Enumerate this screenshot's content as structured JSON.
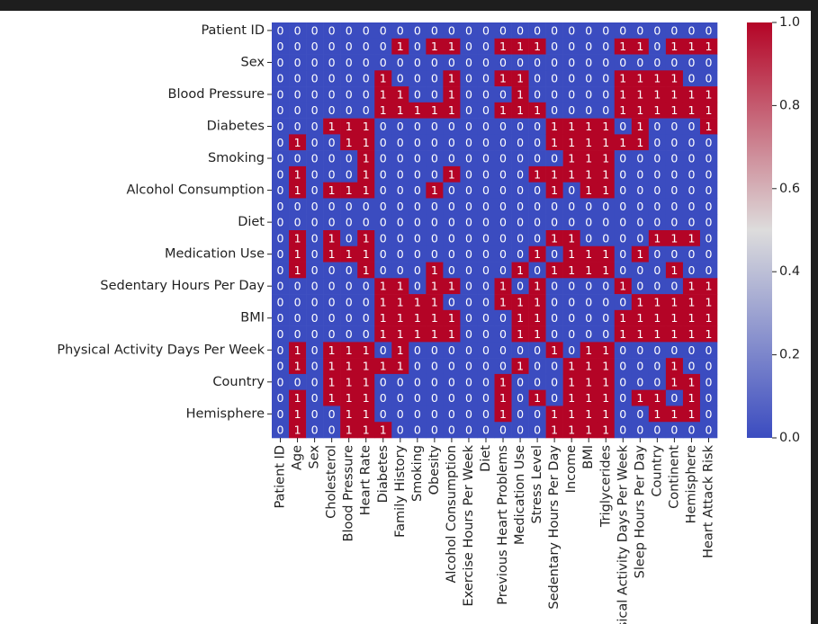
{
  "chart_data": {
    "type": "heatmap",
    "x": [
      "Patient ID",
      "Age",
      "Sex",
      "Cholesterol",
      "Blood Pressure",
      "Heart Rate",
      "Diabetes",
      "Family History",
      "Smoking",
      "Obesity",
      "Alcohol Consumption",
      "Exercise Hours Per Week",
      "Diet",
      "Previous Heart Problems",
      "Medication Use",
      "Stress Level",
      "Sedentary Hours Per Day",
      "Income",
      "BMI",
      "Triglycerides",
      "Physical Activity Days Per Week",
      "Sleep Hours Per Day",
      "Country",
      "Continent",
      "Hemisphere",
      "Heart Attack Risk"
    ],
    "y": [
      "Patient ID",
      null,
      "Sex",
      null,
      "Blood Pressure",
      null,
      "Diabetes",
      null,
      "Smoking",
      null,
      "Alcohol Consumption",
      null,
      "Diet",
      null,
      "Medication Use",
      null,
      "Sedentary Hours Per Day",
      null,
      "BMI",
      null,
      "Physical Activity Days Per Week",
      null,
      "Country",
      null,
      "Hemisphere",
      null
    ],
    "values": [
      [
        0,
        0,
        0,
        0,
        0,
        0,
        0,
        0,
        0,
        0,
        0,
        0,
        0,
        0,
        0,
        0,
        0,
        0,
        0,
        0,
        0,
        0,
        0,
        0,
        0,
        0
      ],
      [
        0,
        0,
        0,
        0,
        0,
        0,
        0,
        1,
        0,
        1,
        1,
        0,
        0,
        1,
        1,
        1,
        0,
        0,
        0,
        0,
        1,
        1,
        0,
        1,
        1,
        1
      ],
      [
        0,
        0,
        0,
        0,
        0,
        0,
        0,
        0,
        0,
        0,
        0,
        0,
        0,
        0,
        0,
        0,
        0,
        0,
        0,
        0,
        0,
        0,
        0,
        0,
        0,
        0
      ],
      [
        0,
        0,
        0,
        0,
        0,
        0,
        1,
        0,
        0,
        0,
        1,
        0,
        0,
        1,
        1,
        0,
        0,
        0,
        0,
        0,
        1,
        1,
        1,
        1,
        0,
        0
      ],
      [
        0,
        0,
        0,
        0,
        0,
        0,
        1,
        1,
        0,
        0,
        1,
        0,
        0,
        0,
        1,
        0,
        0,
        0,
        0,
        0,
        1,
        1,
        1,
        1,
        1,
        1
      ],
      [
        0,
        0,
        0,
        0,
        0,
        0,
        1,
        1,
        1,
        1,
        1,
        0,
        0,
        1,
        1,
        1,
        0,
        0,
        0,
        0,
        1,
        1,
        1,
        1,
        1,
        1
      ],
      [
        0,
        0,
        0,
        1,
        1,
        1,
        0,
        0,
        0,
        0,
        0,
        0,
        0,
        0,
        0,
        0,
        1,
        1,
        1,
        1,
        0,
        1,
        0,
        0,
        0,
        1
      ],
      [
        0,
        1,
        0,
        0,
        1,
        1,
        0,
        0,
        0,
        0,
        0,
        0,
        0,
        0,
        0,
        0,
        1,
        1,
        1,
        1,
        1,
        1,
        0,
        0,
        0,
        0
      ],
      [
        0,
        0,
        0,
        0,
        0,
        1,
        0,
        0,
        0,
        0,
        0,
        0,
        0,
        0,
        0,
        0,
        0,
        1,
        1,
        1,
        0,
        0,
        0,
        0,
        0,
        0
      ],
      [
        0,
        1,
        0,
        0,
        0,
        1,
        0,
        0,
        0,
        0,
        1,
        0,
        0,
        0,
        0,
        1,
        1,
        1,
        1,
        1,
        0,
        0,
        0,
        0,
        0,
        0
      ],
      [
        0,
        1,
        0,
        1,
        1,
        1,
        0,
        0,
        0,
        1,
        0,
        0,
        0,
        0,
        0,
        0,
        1,
        0,
        1,
        1,
        0,
        0,
        0,
        0,
        0,
        0
      ],
      [
        0,
        0,
        0,
        0,
        0,
        0,
        0,
        0,
        0,
        0,
        0,
        0,
        0,
        0,
        0,
        0,
        0,
        0,
        0,
        0,
        0,
        0,
        0,
        0,
        0,
        0
      ],
      [
        0,
        0,
        0,
        0,
        0,
        0,
        0,
        0,
        0,
        0,
        0,
        0,
        0,
        0,
        0,
        0,
        0,
        0,
        0,
        0,
        0,
        0,
        0,
        0,
        0,
        0
      ],
      [
        0,
        1,
        0,
        1,
        0,
        1,
        0,
        0,
        0,
        0,
        0,
        0,
        0,
        0,
        0,
        0,
        1,
        1,
        0,
        0,
        0,
        0,
        1,
        1,
        1,
        0
      ],
      [
        0,
        1,
        0,
        1,
        1,
        1,
        0,
        0,
        0,
        0,
        0,
        0,
        0,
        0,
        0,
        1,
        0,
        1,
        1,
        1,
        0,
        1,
        0,
        0,
        0,
        0
      ],
      [
        0,
        1,
        0,
        0,
        0,
        1,
        0,
        0,
        0,
        1,
        0,
        0,
        0,
        0,
        1,
        0,
        1,
        1,
        1,
        1,
        0,
        0,
        0,
        1,
        0,
        0
      ],
      [
        0,
        0,
        0,
        0,
        0,
        0,
        1,
        1,
        0,
        1,
        1,
        0,
        0,
        1,
        0,
        1,
        0,
        0,
        0,
        0,
        1,
        0,
        0,
        0,
        1,
        1
      ],
      [
        0,
        0,
        0,
        0,
        0,
        0,
        1,
        1,
        1,
        1,
        0,
        0,
        0,
        1,
        1,
        1,
        0,
        0,
        0,
        0,
        0,
        1,
        1,
        1,
        1,
        1
      ],
      [
        0,
        0,
        0,
        0,
        0,
        0,
        1,
        1,
        1,
        1,
        1,
        0,
        0,
        0,
        1,
        1,
        0,
        0,
        0,
        0,
        1,
        1,
        1,
        1,
        1,
        1
      ],
      [
        0,
        0,
        0,
        0,
        0,
        0,
        1,
        1,
        1,
        1,
        1,
        0,
        0,
        0,
        1,
        1,
        0,
        0,
        0,
        0,
        1,
        1,
        1,
        1,
        1,
        1
      ],
      [
        0,
        1,
        0,
        1,
        1,
        1,
        0,
        1,
        0,
        0,
        0,
        0,
        0,
        0,
        0,
        0,
        1,
        0,
        1,
        1,
        0,
        0,
        0,
        0,
        0,
        0
      ],
      [
        0,
        1,
        0,
        1,
        1,
        1,
        1,
        1,
        0,
        0,
        0,
        0,
        0,
        0,
        1,
        0,
        0,
        1,
        1,
        1,
        0,
        0,
        0,
        1,
        0,
        0
      ],
      [
        0,
        0,
        0,
        1,
        1,
        1,
        0,
        0,
        0,
        0,
        0,
        0,
        0,
        1,
        0,
        0,
        0,
        1,
        1,
        1,
        0,
        0,
        0,
        1,
        1,
        0
      ],
      [
        0,
        1,
        0,
        1,
        1,
        1,
        0,
        0,
        0,
        0,
        0,
        0,
        0,
        1,
        0,
        1,
        0,
        1,
        1,
        1,
        0,
        1,
        1,
        0,
        1,
        0
      ],
      [
        0,
        1,
        0,
        0,
        1,
        1,
        0,
        0,
        0,
        0,
        0,
        0,
        0,
        1,
        0,
        0,
        1,
        1,
        1,
        1,
        0,
        0,
        1,
        1,
        1,
        0
      ],
      [
        0,
        1,
        0,
        0,
        1,
        1,
        1,
        0,
        0,
        0,
        0,
        0,
        0,
        0,
        0,
        0,
        1,
        1,
        1,
        1,
        0,
        0,
        0,
        0,
        0,
        0
      ]
    ],
    "colormap": [
      "#3b4cc0",
      "#dddcdc",
      "#b40426"
    ],
    "clim": [
      0,
      1
    ],
    "cticks": [
      {
        "value": 0,
        "label": "0.0"
      },
      {
        "value": 0.2,
        "label": "0.2"
      },
      {
        "value": 0.4,
        "label": "0.4"
      },
      {
        "value": 0.6,
        "label": "0.6"
      },
      {
        "value": 0.8,
        "label": "0.8"
      },
      {
        "value": 1,
        "label": "1.0"
      }
    ]
  }
}
